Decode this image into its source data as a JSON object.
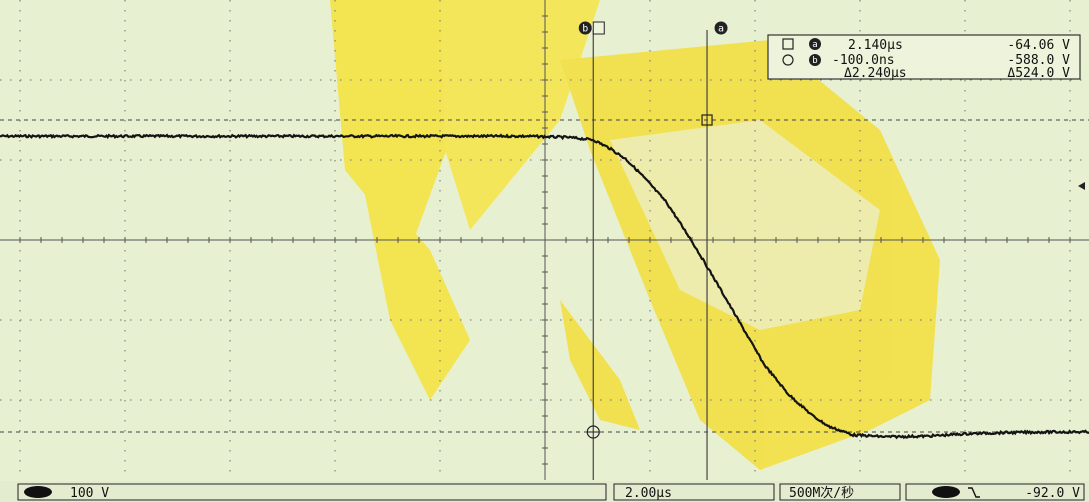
{
  "chart_data": {
    "type": "line",
    "title": "",
    "xlabel": "",
    "ylabel": "",
    "x_unit": "µs",
    "y_unit": "V",
    "time_per_div_us": 2.0,
    "volts_per_div": 100,
    "xlim": [
      -7.9,
      5.5
    ],
    "ylim": [
      -663,
      137
    ],
    "grid": true,
    "series": [
      {
        "x": [
          -7.9,
          -6.0,
          -4.0,
          -2.5,
          -1.4,
          -0.9,
          -0.6,
          -0.4,
          -0.2,
          0.0,
          0.3,
          0.6,
          0.9,
          1.2,
          1.5,
          1.8,
          2.1,
          2.3,
          2.6,
          3.0,
          3.5,
          4.0,
          4.5,
          5.0,
          5.5
        ],
        "y": [
          -90,
          -90,
          -90,
          -90,
          -90,
          -92,
          -96,
          -110,
          -128,
          -155,
          -200,
          -262,
          -330,
          -400,
          -470,
          -520,
          -556,
          -574,
          -588,
          -591,
          -590,
          -586,
          -584,
          -583,
          -583
        ]
      }
    ]
  },
  "cursors": {
    "a": {
      "marker": "a",
      "time": "2.140µs",
      "volts": "-64.06 V"
    },
    "b": {
      "marker": "b",
      "time": "-100.0ns",
      "volts": "-588.0 V"
    },
    "delta": {
      "time": "Δ2.240µs",
      "volts": "Δ524.0 V"
    },
    "a_time_us": 0.8,
    "b_time_us": -0.6,
    "a_level_v": -63,
    "b_level_v": -583
  },
  "status_bar": {
    "channel_scale": "100 V",
    "time_scale": "2.00µs",
    "sample_rate": "500M次/秒",
    "trigger_level": "-92.0 V"
  },
  "colors": {
    "screen_bg": "#e8f0d2",
    "watermark": "#f5e23c",
    "trace": "#141414",
    "grid": "#6e6e6e"
  }
}
